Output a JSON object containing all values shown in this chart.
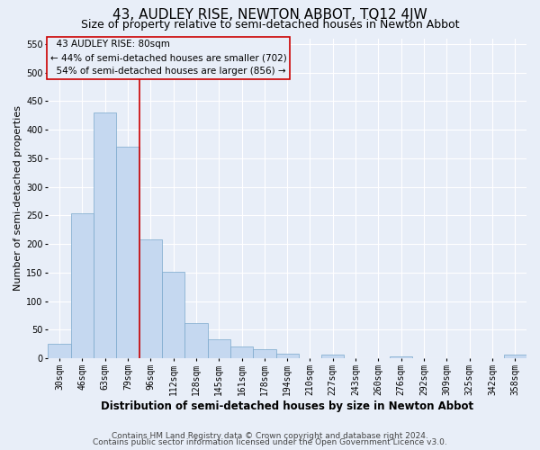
{
  "title": "43, AUDLEY RISE, NEWTON ABBOT, TQ12 4JW",
  "subtitle": "Size of property relative to semi-detached houses in Newton Abbot",
  "xlabel": "Distribution of semi-detached houses by size in Newton Abbot",
  "ylabel": "Number of semi-detached properties",
  "footer_line1": "Contains HM Land Registry data © Crown copyright and database right 2024.",
  "footer_line2": "Contains public sector information licensed under the Open Government Licence v3.0.",
  "categories": [
    "30sqm",
    "46sqm",
    "63sqm",
    "79sqm",
    "96sqm",
    "112sqm",
    "128sqm",
    "145sqm",
    "161sqm",
    "178sqm",
    "194sqm",
    "210sqm",
    "227sqm",
    "243sqm",
    "260sqm",
    "276sqm",
    "292sqm",
    "309sqm",
    "325sqm",
    "342sqm",
    "358sqm"
  ],
  "values": [
    25,
    254,
    430,
    370,
    208,
    151,
    61,
    33,
    20,
    16,
    8,
    1,
    7,
    1,
    1,
    4,
    1,
    0,
    1,
    0,
    6
  ],
  "bar_color": "#c5d8f0",
  "bar_edge_color": "#7aa8cc",
  "vline_color": "#cc0000",
  "vline_bin_index": 3,
  "property_size_label": "43 AUDLEY RISE: 80sqm",
  "pct_smaller": 44,
  "count_smaller": 702,
  "pct_larger": 54,
  "count_larger": 856,
  "ylim": [
    0,
    560
  ],
  "yticks": [
    0,
    50,
    100,
    150,
    200,
    250,
    300,
    350,
    400,
    450,
    500,
    550
  ],
  "background_color": "#e8eef8",
  "grid_color": "#ffffff",
  "title_fontsize": 11,
  "subtitle_fontsize": 9,
  "ylabel_fontsize": 8,
  "xlabel_fontsize": 8.5,
  "tick_fontsize": 7,
  "annot_fontsize": 7.5,
  "footer_fontsize": 6.5
}
